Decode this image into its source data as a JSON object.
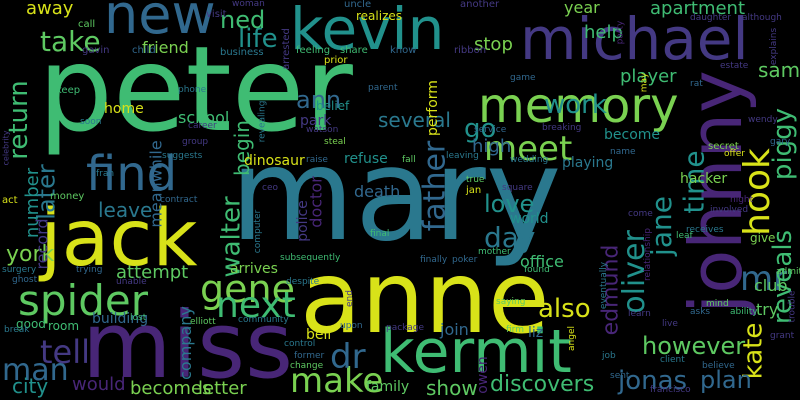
{
  "palette": {
    "background": "#000000",
    "green": "#3fbc73",
    "teal": "#2a788e",
    "purple": "#482677",
    "yellow": "#d8e219",
    "lime": "#7ad151",
    "blue": "#31688e",
    "dark_purple": "#443983",
    "cyan": "#21918c",
    "light_green": "#5ec962"
  },
  "words": [
    {
      "text": "peter",
      "color": "#3fbc73",
      "vertical": false
    },
    {
      "text": "mary",
      "color": "#2a788e",
      "vertical": false
    },
    {
      "text": "anne",
      "color": "#d8e219",
      "vertical": false
    },
    {
      "text": "miss",
      "color": "#482677",
      "vertical": false
    },
    {
      "text": "jack",
      "color": "#d8e219",
      "vertical": false
    },
    {
      "text": "johnny",
      "color": "#482677",
      "vertical": true
    },
    {
      "text": "michael",
      "color": "#443983",
      "vertical": false
    },
    {
      "text": "kermit",
      "color": "#3fbc73",
      "vertical": false
    },
    {
      "text": "memory",
      "color": "#7ad151",
      "vertical": false
    },
    {
      "text": "kevin",
      "color": "#21918c",
      "vertical": false
    },
    {
      "text": "new",
      "color": "#31688e",
      "vertical": false
    },
    {
      "text": "find",
      "color": "#31688e",
      "vertical": false
    },
    {
      "text": "spider",
      "color": "#5ec962",
      "vertical": false
    },
    {
      "text": "hook",
      "color": "#d8e219",
      "vertical": true
    },
    {
      "text": "mr",
      "color": "#31688e",
      "vertical": false
    },
    {
      "text": "gene",
      "color": "#7ad151",
      "vertical": false
    },
    {
      "text": "next",
      "color": "#3fbc73",
      "vertical": false
    },
    {
      "text": "make",
      "color": "#7ad151",
      "vertical": false
    },
    {
      "text": "dr",
      "color": "#31688e",
      "vertical": false
    },
    {
      "text": "meet",
      "color": "#7ad151",
      "vertical": false
    },
    {
      "text": "father",
      "color": "#31688e",
      "vertical": true
    },
    {
      "text": "walter",
      "color": "#3fbc73",
      "vertical": true
    },
    {
      "text": "oliver",
      "color": "#21918c",
      "vertical": true
    },
    {
      "text": "jane",
      "color": "#21918c",
      "vertical": true
    },
    {
      "text": "time",
      "color": "#21918c",
      "vertical": true
    },
    {
      "text": "kate",
      "color": "#d8e219",
      "vertical": true
    },
    {
      "text": "reveals",
      "color": "#3fbc73",
      "vertical": true
    },
    {
      "text": "piggy",
      "color": "#3fbc73",
      "vertical": true
    },
    {
      "text": "sam",
      "color": "#5ec962",
      "vertical": false
    },
    {
      "text": "man",
      "color": "#31688e",
      "vertical": false
    },
    {
      "text": "tell",
      "color": "#443983",
      "vertical": false
    },
    {
      "text": "return",
      "color": "#3fbc73",
      "vertical": true
    },
    {
      "text": "later",
      "color": "#2a788e",
      "vertical": true
    },
    {
      "text": "take",
      "color": "#5ec962",
      "vertical": false
    },
    {
      "text": "ann",
      "color": "#31688e",
      "vertical": false
    },
    {
      "text": "life",
      "color": "#21918c",
      "vertical": false
    },
    {
      "text": "ned",
      "color": "#3fbc73",
      "vertical": false
    },
    {
      "text": "go",
      "color": "#21918c",
      "vertical": false
    },
    {
      "text": "work",
      "color": "#21918c",
      "vertical": false
    },
    {
      "text": "day",
      "color": "#2a788e",
      "vertical": false
    },
    {
      "text": "love",
      "color": "#21918c",
      "vertical": false
    },
    {
      "text": "also",
      "color": "#d8e219",
      "vertical": false
    },
    {
      "text": "jonas",
      "color": "#31688e",
      "vertical": false
    },
    {
      "text": "however",
      "color": "#5ec962",
      "vertical": false
    },
    {
      "text": "plan",
      "color": "#31688e",
      "vertical": false
    },
    {
      "text": "discovers",
      "color": "#3fbc73",
      "vertical": false
    },
    {
      "text": "edmund",
      "color": "#482677",
      "vertical": true
    },
    {
      "text": "york",
      "color": "#7ad151",
      "vertical": false
    },
    {
      "text": "city",
      "color": "#21918c",
      "vertical": false
    },
    {
      "text": "becomes",
      "color": "#7ad151",
      "vertical": false
    },
    {
      "text": "letter",
      "color": "#7ad151",
      "vertical": false
    },
    {
      "text": "show",
      "color": "#5ec962",
      "vertical": false
    },
    {
      "text": "would",
      "color": "#482677",
      "vertical": false
    },
    {
      "text": "family",
      "color": "#5ec962",
      "vertical": false
    },
    {
      "text": "begin",
      "color": "#3fbc73",
      "vertical": true
    },
    {
      "text": "several",
      "color": "#2a788e",
      "vertical": false
    },
    {
      "text": "high",
      "color": "#31688e",
      "vertical": false
    },
    {
      "text": "leave",
      "color": "#2a788e",
      "vertical": false
    },
    {
      "text": "attempt",
      "color": "#5ec962",
      "vertical": false
    },
    {
      "text": "player",
      "color": "#3fbc73",
      "vertical": false
    },
    {
      "text": "stop",
      "color": "#7ad151",
      "vertical": false
    },
    {
      "text": "help",
      "color": "#3fbc73",
      "vertical": false
    },
    {
      "text": "apartment",
      "color": "#3fbc73",
      "vertical": false
    },
    {
      "text": "friend",
      "color": "#7ad151",
      "vertical": false
    },
    {
      "text": "away",
      "color": "#d8e219",
      "vertical": false
    },
    {
      "text": "year",
      "color": "#7ad151",
      "vertical": false
    },
    {
      "text": "number",
      "color": "#21918c",
      "vertical": true
    },
    {
      "text": "record",
      "color": "#443983",
      "vertical": true
    },
    {
      "text": "meanwhile",
      "color": "#31688e",
      "vertical": true
    },
    {
      "text": "home",
      "color": "#d8e219",
      "vertical": false
    },
    {
      "text": "school",
      "color": "#3fbc73",
      "vertical": false
    },
    {
      "text": "dinosaur",
      "color": "#d8e219",
      "vertical": false
    },
    {
      "text": "doctor",
      "color": "#482677",
      "vertical": true
    },
    {
      "text": "police",
      "color": "#443983",
      "vertical": true
    },
    {
      "text": "death",
      "color": "#31688e",
      "vertical": false
    },
    {
      "text": "refuse",
      "color": "#21918c",
      "vertical": false
    },
    {
      "text": "company",
      "color": "#2a788e",
      "vertical": true
    },
    {
      "text": "arrives",
      "color": "#7ad151",
      "vertical": false
    },
    {
      "text": "bell",
      "color": "#d8e219",
      "vertical": false
    },
    {
      "text": "building",
      "color": "#31688e",
      "vertical": false
    },
    {
      "text": "room",
      "color": "#3fbc73",
      "vertical": false
    },
    {
      "text": "good",
      "color": "#3fbc73",
      "vertical": false
    },
    {
      "text": "office",
      "color": "#3fbc73",
      "vertical": false
    },
    {
      "text": "world",
      "color": "#21918c",
      "vertical": false
    },
    {
      "text": "club",
      "color": "#5ec962",
      "vertical": false
    },
    {
      "text": "try",
      "color": "#5ec962",
      "vertical": false
    },
    {
      "text": "join",
      "color": "#31688e",
      "vertical": false
    },
    {
      "text": "owen",
      "color": "#482677",
      "vertical": true
    },
    {
      "text": "liz",
      "color": "#31688e",
      "vertical": false
    },
    {
      "text": "perform",
      "color": "#d8e219",
      "vertical": true
    },
    {
      "text": "park",
      "color": "#443983",
      "vertical": false
    },
    {
      "text": "belief",
      "color": "#21918c",
      "vertical": false
    },
    {
      "text": "become",
      "color": "#21918c",
      "vertical": false
    },
    {
      "text": "playing",
      "color": "#2a788e",
      "vertical": false
    },
    {
      "text": "hacker",
      "color": "#7ad151",
      "vertical": false
    },
    {
      "text": "give",
      "color": "#7ad151",
      "vertical": false
    },
    {
      "text": "keep",
      "color": "#3fbc73",
      "vertical": false
    },
    {
      "text": "call",
      "color": "#5ec962",
      "vertical": false
    },
    {
      "text": "visit",
      "color": "#443983",
      "vertical": false
    },
    {
      "text": "gavin",
      "color": "#443983",
      "vertical": false
    },
    {
      "text": "child",
      "color": "#31688e",
      "vertical": false
    },
    {
      "text": "business",
      "color": "#2a788e",
      "vertical": false
    },
    {
      "text": "woman",
      "color": "#443983",
      "vertical": false
    },
    {
      "text": "arrested",
      "color": "#443983",
      "vertical": true
    },
    {
      "text": "uncle",
      "color": "#31688e",
      "vertical": false
    },
    {
      "text": "realizes",
      "color": "#d8e219",
      "vertical": false
    },
    {
      "text": "another",
      "color": "#443983",
      "vertical": false
    },
    {
      "text": "ribbon",
      "color": "#443983",
      "vertical": false
    },
    {
      "text": "feeling",
      "color": "#3fbc73",
      "vertical": false
    },
    {
      "text": "share",
      "color": "#3fbc73",
      "vertical": false
    },
    {
      "text": "know",
      "color": "#31688e",
      "vertical": false
    },
    {
      "text": "prior",
      "color": "#d8e219",
      "vertical": false
    },
    {
      "text": "party",
      "color": "#482677",
      "vertical": true
    },
    {
      "text": "daughter",
      "color": "#443983",
      "vertical": false
    },
    {
      "text": "although",
      "color": "#443983",
      "vertical": false
    },
    {
      "text": "explains",
      "color": "#443983",
      "vertical": true
    },
    {
      "text": "estate",
      "color": "#443983",
      "vertical": false
    },
    {
      "text": "rat",
      "color": "#31688e",
      "vertical": false
    },
    {
      "text": "game",
      "color": "#31688e",
      "vertical": false
    },
    {
      "text": "may",
      "color": "#d8e219",
      "vertical": true
    },
    {
      "text": "phone",
      "color": "#2a788e",
      "vertical": false
    },
    {
      "text": "parent",
      "color": "#31688e",
      "vertical": false
    },
    {
      "text": "soon",
      "color": "#2a788e",
      "vertical": false
    },
    {
      "text": "career",
      "color": "#443983",
      "vertical": false
    },
    {
      "text": "group",
      "color": "#443983",
      "vertical": false
    },
    {
      "text": "watson",
      "color": "#443983",
      "vertical": false
    },
    {
      "text": "steal",
      "color": "#7ad151",
      "vertical": false
    },
    {
      "text": "service",
      "color": "#31688e",
      "vertical": false
    },
    {
      "text": "breaking",
      "color": "#443983",
      "vertical": false
    },
    {
      "text": "wendy",
      "color": "#443983",
      "vertical": false
    },
    {
      "text": "secret",
      "color": "#7ad151",
      "vertical": false
    },
    {
      "text": "offer",
      "color": "#d8e219",
      "vertical": false
    },
    {
      "text": "gary",
      "color": "#31688e",
      "vertical": false
    },
    {
      "text": "name",
      "color": "#31688e",
      "vertical": false
    },
    {
      "text": "wedding",
      "color": "#2a788e",
      "vertical": false
    },
    {
      "text": "leaving",
      "color": "#2a788e",
      "vertical": false
    },
    {
      "text": "fall",
      "color": "#5ec962",
      "vertical": false
    },
    {
      "text": "raise",
      "color": "#31688e",
      "vertical": false
    },
    {
      "text": "suggests",
      "color": "#2a788e",
      "vertical": false
    },
    {
      "text": "fran",
      "color": "#2a788e",
      "vertical": false
    },
    {
      "text": "celebrity",
      "color": "#443983",
      "vertical": true
    },
    {
      "text": "money",
      "color": "#5ec962",
      "vertical": false
    },
    {
      "text": "act",
      "color": "#d8e219",
      "vertical": false
    },
    {
      "text": "contract",
      "color": "#31688e",
      "vertical": false
    },
    {
      "text": "ceo",
      "color": "#443983",
      "vertical": false
    },
    {
      "text": "true",
      "color": "#5ec962",
      "vertical": false
    },
    {
      "text": "jan",
      "color": "#d8e219",
      "vertical": false
    },
    {
      "text": "square",
      "color": "#443983",
      "vertical": false
    },
    {
      "text": "final",
      "color": "#3fbc73",
      "vertical": false
    },
    {
      "text": "computer",
      "color": "#2a788e",
      "vertical": true
    },
    {
      "text": "subsequently",
      "color": "#3fbc73",
      "vertical": false
    },
    {
      "text": "finally",
      "color": "#31688e",
      "vertical": false
    },
    {
      "text": "poker",
      "color": "#31688e",
      "vertical": false
    },
    {
      "text": "mother",
      "color": "#3fbc73",
      "vertical": false
    },
    {
      "text": "found",
      "color": "#3fbc73",
      "vertical": false
    },
    {
      "text": "relationship",
      "color": "#482677",
      "vertical": true
    },
    {
      "text": "receives",
      "color": "#2a788e",
      "vertical": false
    },
    {
      "text": "involved",
      "color": "#443983",
      "vertical": false
    },
    {
      "text": "night",
      "color": "#482677",
      "vertical": false
    },
    {
      "text": "come",
      "color": "#443983",
      "vertical": false
    },
    {
      "text": "leaf",
      "color": "#3fbc73",
      "vertical": false
    },
    {
      "text": "admits",
      "color": "#5ec962",
      "vertical": false
    },
    {
      "text": "eventually",
      "color": "#2a788e",
      "vertical": true
    },
    {
      "text": "surgery",
      "color": "#2a788e",
      "vertical": false
    },
    {
      "text": "ghost",
      "color": "#31688e",
      "vertical": false
    },
    {
      "text": "unable",
      "color": "#443983",
      "vertical": false
    },
    {
      "text": "trying",
      "color": "#31688e",
      "vertical": false
    },
    {
      "text": "elliott",
      "color": "#5ec962",
      "vertical": false
    },
    {
      "text": "lost",
      "color": "#3fbc73",
      "vertical": false
    },
    {
      "text": "community",
      "color": "#2a788e",
      "vertical": false
    },
    {
      "text": "despite",
      "color": "#2a788e",
      "vertical": false
    },
    {
      "text": "upon",
      "color": "#31688e",
      "vertical": false
    },
    {
      "text": "package",
      "color": "#443983",
      "vertical": false
    },
    {
      "text": "firm",
      "color": "#5ec962",
      "vertical": false
    },
    {
      "text": "angel",
      "color": "#d8e219",
      "vertical": true
    },
    {
      "text": "saying",
      "color": "#5ec962",
      "vertical": false
    },
    {
      "text": "end",
      "color": "#443983",
      "vertical": true
    },
    {
      "text": "control",
      "color": "#2a788e",
      "vertical": false
    },
    {
      "text": "former",
      "color": "#31688e",
      "vertical": false
    },
    {
      "text": "change",
      "color": "#5ec962",
      "vertical": false
    },
    {
      "text": "break",
      "color": "#2a788e",
      "vertical": false
    },
    {
      "text": "learn",
      "color": "#443983",
      "vertical": false
    },
    {
      "text": "live",
      "color": "#443983",
      "vertical": false
    },
    {
      "text": "asks",
      "color": "#31688e",
      "vertical": false
    },
    {
      "text": "mind",
      "color": "#5ec962",
      "vertical": false
    },
    {
      "text": "ability",
      "color": "#3fbc73",
      "vertical": false
    },
    {
      "text": "grant",
      "color": "#443983",
      "vertical": false
    },
    {
      "text": "client",
      "color": "#2a788e",
      "vertical": false
    },
    {
      "text": "believe",
      "color": "#31688e",
      "vertical": false
    },
    {
      "text": "job",
      "color": "#2a788e",
      "vertical": false
    },
    {
      "text": "francisco",
      "color": "#443983",
      "vertical": false
    },
    {
      "text": "sent",
      "color": "#31688e",
      "vertical": false
    },
    {
      "text": "revealing",
      "color": "#2a788e",
      "vertical": true
    },
    {
      "text": "trouble",
      "color": "#443983",
      "vertical": true
    }
  ]
}
